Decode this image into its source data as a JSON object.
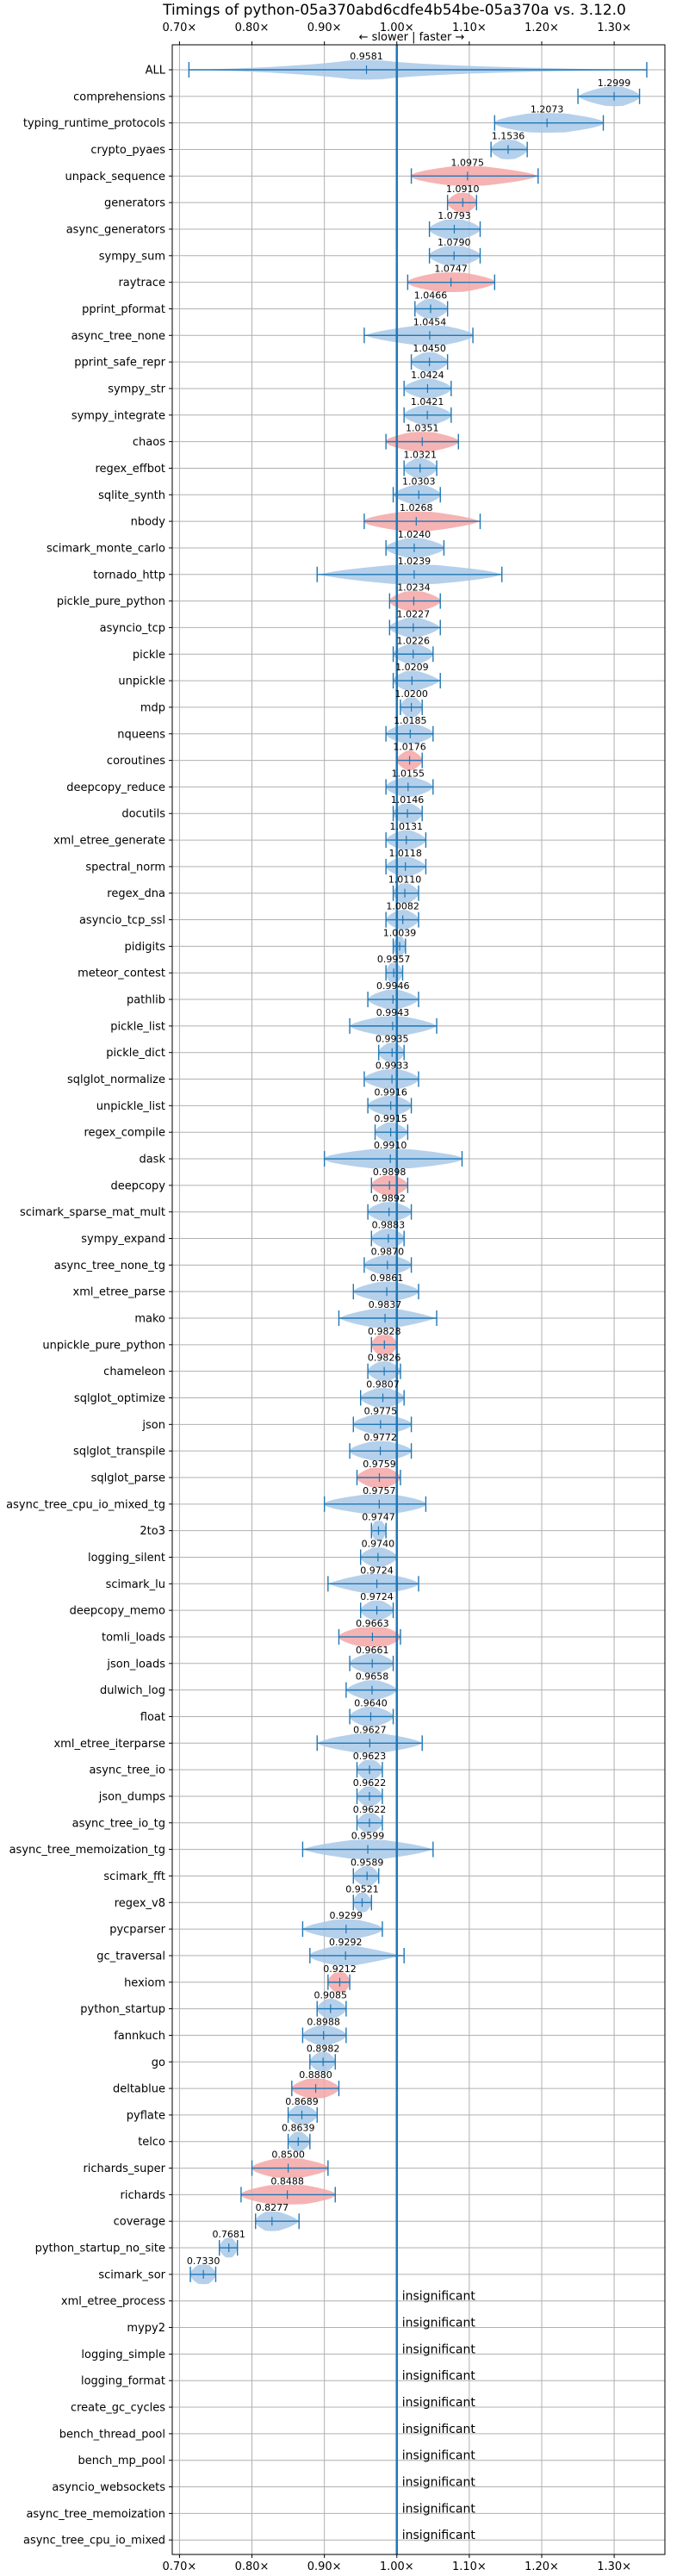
{
  "chart_data": {
    "type": "violin",
    "title": "Timings of python-05a370abd6cdfe4b54be-05a370a vs. 3.12.0",
    "direction_label": "← slower | faster →",
    "xlim": [
      0.69,
      1.37
    ],
    "xticks": [
      0.7,
      0.8,
      0.9,
      1.0,
      1.1,
      1.2,
      1.3
    ],
    "xtick_labels": [
      "0.70×",
      "0.80×",
      "0.90×",
      "1.00×",
      "1.10×",
      "1.20×",
      "1.30×"
    ],
    "reference_x": 1.0,
    "colors": {
      "normal": "#a8c8e8",
      "highlight": "#f4a6a6",
      "line": "#1f77b4",
      "reference": "#1f77b4"
    },
    "insignificant_label": "insignificant",
    "benchmarks": [
      {
        "name": "ALL",
        "value": 0.9581,
        "label": "0.9581",
        "min": 0.713,
        "max": 1.345,
        "spread": 0.035,
        "highlight": false
      },
      {
        "name": "comprehensions",
        "value": 1.2999,
        "label": "1.2999",
        "min": 1.25,
        "max": 1.335,
        "spread": 0.02,
        "highlight": false
      },
      {
        "name": "typing_runtime_protocols",
        "value": 1.2073,
        "label": "1.2073",
        "min": 1.135,
        "max": 1.285,
        "spread": 0.04,
        "highlight": false
      },
      {
        "name": "crypto_pyaes",
        "value": 1.1536,
        "label": "1.1536",
        "min": 1.13,
        "max": 1.18,
        "spread": 0.015,
        "highlight": false
      },
      {
        "name": "unpack_sequence",
        "value": 1.0975,
        "label": "1.0975",
        "min": 1.02,
        "max": 1.195,
        "spread": 0.04,
        "highlight": true
      },
      {
        "name": "generators",
        "value": 1.091,
        "label": "1.0910",
        "min": 1.07,
        "max": 1.11,
        "spread": 0.012,
        "highlight": true
      },
      {
        "name": "async_generators",
        "value": 1.0793,
        "label": "1.0793",
        "min": 1.045,
        "max": 1.115,
        "spread": 0.02,
        "highlight": false
      },
      {
        "name": "sympy_sum",
        "value": 1.079,
        "label": "1.0790",
        "min": 1.045,
        "max": 1.115,
        "spread": 0.02,
        "highlight": false
      },
      {
        "name": "raytrace",
        "value": 1.0747,
        "label": "1.0747",
        "min": 1.015,
        "max": 1.135,
        "spread": 0.03,
        "highlight": true
      },
      {
        "name": "pprint_pformat",
        "value": 1.0466,
        "label": "1.0466",
        "min": 1.025,
        "max": 1.07,
        "spread": 0.012,
        "highlight": false
      },
      {
        "name": "async_tree_none",
        "value": 1.0454,
        "label": "1.0454",
        "min": 0.955,
        "max": 1.105,
        "spread": 0.035,
        "highlight": false
      },
      {
        "name": "pprint_safe_repr",
        "value": 1.045,
        "label": "1.0450",
        "min": 1.02,
        "max": 1.07,
        "spread": 0.012,
        "highlight": false
      },
      {
        "name": "sympy_str",
        "value": 1.0424,
        "label": "1.0424",
        "min": 1.01,
        "max": 1.075,
        "spread": 0.015,
        "highlight": false
      },
      {
        "name": "sympy_integrate",
        "value": 1.0421,
        "label": "1.0421",
        "min": 1.01,
        "max": 1.075,
        "spread": 0.015,
        "highlight": false
      },
      {
        "name": "chaos",
        "value": 1.0351,
        "label": "1.0351",
        "min": 0.985,
        "max": 1.085,
        "spread": 0.025,
        "highlight": true
      },
      {
        "name": "regex_effbot",
        "value": 1.0321,
        "label": "1.0321",
        "min": 1.01,
        "max": 1.055,
        "spread": 0.012,
        "highlight": false
      },
      {
        "name": "sqlite_synth",
        "value": 1.0303,
        "label": "1.0303",
        "min": 0.995,
        "max": 1.06,
        "spread": 0.015,
        "highlight": false
      },
      {
        "name": "nbody",
        "value": 1.0268,
        "label": "1.0268",
        "min": 0.955,
        "max": 1.115,
        "spread": 0.035,
        "highlight": true
      },
      {
        "name": "scimark_monte_carlo",
        "value": 1.024,
        "label": "1.0240",
        "min": 0.985,
        "max": 1.065,
        "spread": 0.02,
        "highlight": false
      },
      {
        "name": "tornado_http",
        "value": 1.0239,
        "label": "1.0239",
        "min": 0.89,
        "max": 1.145,
        "spread": 0.05,
        "highlight": false
      },
      {
        "name": "pickle_pure_python",
        "value": 1.0234,
        "label": "1.0234",
        "min": 0.99,
        "max": 1.06,
        "spread": 0.02,
        "highlight": true
      },
      {
        "name": "asyncio_tcp",
        "value": 1.0227,
        "label": "1.0227",
        "min": 0.99,
        "max": 1.06,
        "spread": 0.015,
        "highlight": false
      },
      {
        "name": "pickle",
        "value": 1.0226,
        "label": "1.0226",
        "min": 0.995,
        "max": 1.05,
        "spread": 0.015,
        "highlight": false
      },
      {
        "name": "unpickle",
        "value": 1.0209,
        "label": "1.0209",
        "min": 0.995,
        "max": 1.06,
        "spread": 0.015,
        "highlight": false
      },
      {
        "name": "mdp",
        "value": 1.02,
        "label": "1.0200",
        "min": 1.005,
        "max": 1.035,
        "spread": 0.01,
        "highlight": false
      },
      {
        "name": "nqueens",
        "value": 1.0185,
        "label": "1.0185",
        "min": 0.985,
        "max": 1.05,
        "spread": 0.015,
        "highlight": false
      },
      {
        "name": "coroutines",
        "value": 1.0176,
        "label": "1.0176",
        "min": 1.0,
        "max": 1.035,
        "spread": 0.008,
        "highlight": true
      },
      {
        "name": "deepcopy_reduce",
        "value": 1.0155,
        "label": "1.0155",
        "min": 0.985,
        "max": 1.05,
        "spread": 0.015,
        "highlight": false
      },
      {
        "name": "docutils",
        "value": 1.0146,
        "label": "1.0146",
        "min": 0.995,
        "max": 1.035,
        "spread": 0.012,
        "highlight": false
      },
      {
        "name": "xml_etree_generate",
        "value": 1.0131,
        "label": "1.0131",
        "min": 0.985,
        "max": 1.04,
        "spread": 0.012,
        "highlight": false
      },
      {
        "name": "spectral_norm",
        "value": 1.0118,
        "label": "1.0118",
        "min": 0.985,
        "max": 1.04,
        "spread": 0.012,
        "highlight": false
      },
      {
        "name": "regex_dna",
        "value": 1.011,
        "label": "1.0110",
        "min": 0.995,
        "max": 1.03,
        "spread": 0.01,
        "highlight": false
      },
      {
        "name": "asyncio_tcp_ssl",
        "value": 1.0082,
        "label": "1.0082",
        "min": 0.985,
        "max": 1.03,
        "spread": 0.01,
        "highlight": false
      },
      {
        "name": "pidigits",
        "value": 1.0039,
        "label": "1.0039",
        "min": 0.995,
        "max": 1.012,
        "spread": 0.006,
        "highlight": false
      },
      {
        "name": "meteor_contest",
        "value": 0.9957,
        "label": "0.9957",
        "min": 0.985,
        "max": 1.008,
        "spread": 0.008,
        "highlight": false
      },
      {
        "name": "pathlib",
        "value": 0.9946,
        "label": "0.9946",
        "min": 0.96,
        "max": 1.03,
        "spread": 0.015,
        "highlight": false
      },
      {
        "name": "pickle_list",
        "value": 0.9943,
        "label": "0.9943",
        "min": 0.935,
        "max": 1.055,
        "spread": 0.025,
        "highlight": false
      },
      {
        "name": "pickle_dict",
        "value": 0.9935,
        "label": "0.9935",
        "min": 0.975,
        "max": 1.01,
        "spread": 0.01,
        "highlight": false
      },
      {
        "name": "sqlglot_normalize",
        "value": 0.9933,
        "label": "0.9933",
        "min": 0.955,
        "max": 1.03,
        "spread": 0.02,
        "highlight": false
      },
      {
        "name": "unpickle_list",
        "value": 0.9916,
        "label": "0.9916",
        "min": 0.96,
        "max": 1.02,
        "spread": 0.015,
        "highlight": false
      },
      {
        "name": "regex_compile",
        "value": 0.9915,
        "label": "0.9915",
        "min": 0.97,
        "max": 1.015,
        "spread": 0.01,
        "highlight": false
      },
      {
        "name": "dask",
        "value": 0.991,
        "label": "0.9910",
        "min": 0.9,
        "max": 1.09,
        "spread": 0.045,
        "highlight": false
      },
      {
        "name": "deepcopy",
        "value": 0.9898,
        "label": "0.9898",
        "min": 0.965,
        "max": 1.015,
        "spread": 0.015,
        "highlight": true
      },
      {
        "name": "scimark_sparse_mat_mult",
        "value": 0.9892,
        "label": "0.9892",
        "min": 0.96,
        "max": 1.02,
        "spread": 0.015,
        "highlight": false
      },
      {
        "name": "sympy_expand",
        "value": 0.9883,
        "label": "0.9883",
        "min": 0.965,
        "max": 1.01,
        "spread": 0.012,
        "highlight": false
      },
      {
        "name": "async_tree_none_tg",
        "value": 0.987,
        "label": "0.9870",
        "min": 0.955,
        "max": 1.02,
        "spread": 0.015,
        "highlight": false
      },
      {
        "name": "xml_etree_parse",
        "value": 0.9861,
        "label": "0.9861",
        "min": 0.94,
        "max": 1.03,
        "spread": 0.02,
        "highlight": false
      },
      {
        "name": "mako",
        "value": 0.9837,
        "label": "0.9837",
        "min": 0.92,
        "max": 1.055,
        "spread": 0.025,
        "highlight": false
      },
      {
        "name": "unpickle_pure_python",
        "value": 0.9828,
        "label": "0.9828",
        "min": 0.965,
        "max": 1.0,
        "spread": 0.015,
        "highlight": true
      },
      {
        "name": "chameleon",
        "value": 0.9826,
        "label": "0.9826",
        "min": 0.96,
        "max": 1.005,
        "spread": 0.012,
        "highlight": false
      },
      {
        "name": "sqlglot_optimize",
        "value": 0.9807,
        "label": "0.9807",
        "min": 0.95,
        "max": 1.01,
        "spread": 0.015,
        "highlight": false
      },
      {
        "name": "json",
        "value": 0.9775,
        "label": "0.9775",
        "min": 0.94,
        "max": 1.02,
        "spread": 0.02,
        "highlight": false
      },
      {
        "name": "sqlglot_transpile",
        "value": 0.9772,
        "label": "0.9772",
        "min": 0.935,
        "max": 1.02,
        "spread": 0.02,
        "highlight": false
      },
      {
        "name": "sqlglot_parse",
        "value": 0.9759,
        "label": "0.9759",
        "min": 0.945,
        "max": 1.005,
        "spread": 0.02,
        "highlight": true
      },
      {
        "name": "async_tree_cpu_io_mixed_tg",
        "value": 0.9757,
        "label": "0.9757",
        "min": 0.9,
        "max": 1.04,
        "spread": 0.035,
        "highlight": false
      },
      {
        "name": "2to3",
        "value": 0.9747,
        "label": "0.9747",
        "min": 0.965,
        "max": 0.985,
        "spread": 0.008,
        "highlight": false
      },
      {
        "name": "logging_silent",
        "value": 0.974,
        "label": "0.9740",
        "min": 0.95,
        "max": 1.0,
        "spread": 0.012,
        "highlight": false
      },
      {
        "name": "scimark_lu",
        "value": 0.9724,
        "label": "0.9724",
        "min": 0.905,
        "max": 1.03,
        "spread": 0.025,
        "highlight": false
      },
      {
        "name": "deepcopy_memo",
        "value": 0.9724,
        "label": "0.9724",
        "min": 0.95,
        "max": 0.995,
        "spread": 0.012,
        "highlight": false
      },
      {
        "name": "tomli_loads",
        "value": 0.9663,
        "label": "0.9663",
        "min": 0.92,
        "max": 1.005,
        "spread": 0.03,
        "highlight": true
      },
      {
        "name": "json_loads",
        "value": 0.9661,
        "label": "0.9661",
        "min": 0.935,
        "max": 0.995,
        "spread": 0.015,
        "highlight": false
      },
      {
        "name": "dulwich_log",
        "value": 0.9658,
        "label": "0.9658",
        "min": 0.93,
        "max": 1.0,
        "spread": 0.015,
        "highlight": false
      },
      {
        "name": "float",
        "value": 0.964,
        "label": "0.9640",
        "min": 0.935,
        "max": 0.995,
        "spread": 0.015,
        "highlight": false
      },
      {
        "name": "xml_etree_iterparse",
        "value": 0.9627,
        "label": "0.9627",
        "min": 0.89,
        "max": 1.035,
        "spread": 0.03,
        "highlight": false
      },
      {
        "name": "async_tree_io",
        "value": 0.9623,
        "label": "0.9623",
        "min": 0.945,
        "max": 0.98,
        "spread": 0.012,
        "highlight": false
      },
      {
        "name": "json_dumps",
        "value": 0.9622,
        "label": "0.9622",
        "min": 0.945,
        "max": 0.98,
        "spread": 0.01,
        "highlight": false
      },
      {
        "name": "async_tree_io_tg",
        "value": 0.9622,
        "label": "0.9622",
        "min": 0.945,
        "max": 0.98,
        "spread": 0.01,
        "highlight": false
      },
      {
        "name": "async_tree_memoization_tg",
        "value": 0.9599,
        "label": "0.9599",
        "min": 0.87,
        "max": 1.05,
        "spread": 0.035,
        "highlight": false
      },
      {
        "name": "scimark_fft",
        "value": 0.9589,
        "label": "0.9589",
        "min": 0.94,
        "max": 0.975,
        "spread": 0.01,
        "highlight": false
      },
      {
        "name": "regex_v8",
        "value": 0.9521,
        "label": "0.9521",
        "min": 0.94,
        "max": 0.965,
        "spread": 0.008,
        "highlight": false
      },
      {
        "name": "pycparser",
        "value": 0.9299,
        "label": "0.9299",
        "min": 0.87,
        "max": 0.98,
        "spread": 0.025,
        "highlight": false
      },
      {
        "name": "gc_traversal",
        "value": 0.9292,
        "label": "0.9292",
        "min": 0.88,
        "max": 1.01,
        "spread": 0.025,
        "highlight": false
      },
      {
        "name": "hexiom",
        "value": 0.9212,
        "label": "0.9212",
        "min": 0.905,
        "max": 0.935,
        "spread": 0.012,
        "highlight": true
      },
      {
        "name": "python_startup",
        "value": 0.9085,
        "label": "0.9085",
        "min": 0.89,
        "max": 0.93,
        "spread": 0.01,
        "highlight": false
      },
      {
        "name": "fannkuch",
        "value": 0.8988,
        "label": "0.8988",
        "min": 0.87,
        "max": 0.93,
        "spread": 0.015,
        "highlight": false
      },
      {
        "name": "go",
        "value": 0.8982,
        "label": "0.8982",
        "min": 0.88,
        "max": 0.915,
        "spread": 0.01,
        "highlight": false
      },
      {
        "name": "deltablue",
        "value": 0.888,
        "label": "0.8880",
        "min": 0.855,
        "max": 0.92,
        "spread": 0.02,
        "highlight": true
      },
      {
        "name": "pyflate",
        "value": 0.8689,
        "label": "0.8689",
        "min": 0.85,
        "max": 0.89,
        "spread": 0.012,
        "highlight": false
      },
      {
        "name": "telco",
        "value": 0.8639,
        "label": "0.8639",
        "min": 0.85,
        "max": 0.88,
        "spread": 0.008,
        "highlight": false
      },
      {
        "name": "richards_super",
        "value": 0.85,
        "label": "0.8500",
        "min": 0.8,
        "max": 0.905,
        "spread": 0.03,
        "highlight": true
      },
      {
        "name": "richards",
        "value": 0.8488,
        "label": "0.8488",
        "min": 0.785,
        "max": 0.915,
        "spread": 0.04,
        "highlight": true
      },
      {
        "name": "coverage",
        "value": 0.8277,
        "label": "0.8277",
        "min": 0.805,
        "max": 0.865,
        "spread": 0.015,
        "highlight": false
      },
      {
        "name": "python_startup_no_site",
        "value": 0.7681,
        "label": "0.7681",
        "min": 0.755,
        "max": 0.78,
        "spread": 0.008,
        "highlight": false
      },
      {
        "name": "scimark_sor",
        "value": 0.733,
        "label": "0.7330",
        "min": 0.715,
        "max": 0.75,
        "spread": 0.012,
        "highlight": false
      },
      {
        "name": "xml_etree_process",
        "value": null,
        "label": "",
        "highlight": false
      },
      {
        "name": "mypy2",
        "value": null,
        "label": "",
        "highlight": false
      },
      {
        "name": "logging_simple",
        "value": null,
        "label": "",
        "highlight": false
      },
      {
        "name": "logging_format",
        "value": null,
        "label": "",
        "highlight": false
      },
      {
        "name": "create_gc_cycles",
        "value": null,
        "label": "",
        "highlight": false
      },
      {
        "name": "bench_thread_pool",
        "value": null,
        "label": "",
        "highlight": false
      },
      {
        "name": "bench_mp_pool",
        "value": null,
        "label": "",
        "highlight": false
      },
      {
        "name": "asyncio_websockets",
        "value": null,
        "label": "",
        "highlight": false
      },
      {
        "name": "async_tree_memoization",
        "value": null,
        "label": "",
        "highlight": false
      },
      {
        "name": "async_tree_cpu_io_mixed",
        "value": null,
        "label": "",
        "highlight": false
      }
    ]
  }
}
